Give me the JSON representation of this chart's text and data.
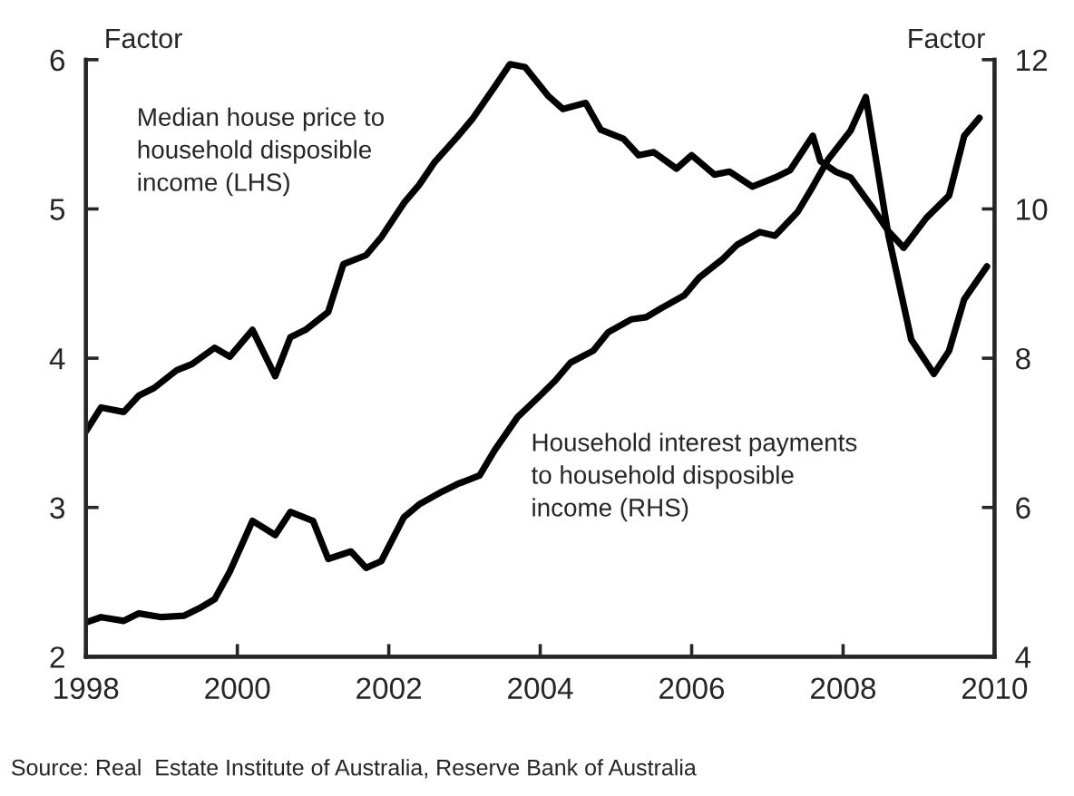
{
  "chart_data": {
    "type": "line",
    "ylabel": "Factor",
    "y2label": "Factor",
    "xlim": [
      1998,
      2010
    ],
    "xticks": [
      1998,
      2000,
      2002,
      2004,
      2006,
      2008,
      2010
    ],
    "ylim": [
      2,
      6
    ],
    "yticks": [
      2,
      3,
      4,
      5,
      6
    ],
    "y2lim": [
      4,
      12
    ],
    "y2ticks": [
      4,
      6,
      8,
      10,
      12
    ],
    "grid": false,
    "legend": false,
    "marker": "none",
    "line_style": "solid",
    "series": [
      {
        "color": "#000000",
        "x": [
          1998.0,
          1998.2,
          1998.5,
          1998.7,
          1998.9,
          1999.2,
          1999.4,
          1999.7,
          1999.9,
          2000.2,
          2000.5,
          2000.7,
          2000.9,
          2001.2,
          2001.4,
          2001.7,
          2001.9,
          2002.2,
          2002.4,
          2002.6,
          2002.9,
          2003.1,
          2003.4,
          2003.6,
          2003.8,
          2004.1,
          2004.3,
          2004.6,
          2004.8,
          2005.1,
          2005.3,
          2005.5,
          2005.8,
          2006.0,
          2006.3,
          2006.5,
          2006.8,
          2007.1,
          2007.3,
          2007.6,
          2007.7,
          2007.9,
          2008.1,
          2008.4,
          2008.6,
          2008.8,
          2009.1,
          2009.4,
          2009.6,
          2009.8
        ],
        "values": [
          3.51,
          3.67,
          3.64,
          3.75,
          3.8,
          3.92,
          3.96,
          4.07,
          4.01,
          4.19,
          3.88,
          4.14,
          4.19,
          4.31,
          4.63,
          4.69,
          4.81,
          5.04,
          5.16,
          5.31,
          5.48,
          5.6,
          5.82,
          5.97,
          5.95,
          5.76,
          5.67,
          5.71,
          5.53,
          5.47,
          5.36,
          5.38,
          5.27,
          5.36,
          5.23,
          5.25,
          5.15,
          5.21,
          5.26,
          5.49,
          5.32,
          5.25,
          5.21,
          5.0,
          4.85,
          4.74,
          4.94,
          5.09,
          5.49,
          5.61
        ]
      },
      {
        "color": "#000000",
        "axis": "y2",
        "x": [
          1998.0,
          1998.2,
          1998.5,
          1998.7,
          1999.0,
          1999.3,
          1999.5,
          1999.7,
          1999.9,
          2000.2,
          2000.5,
          2000.7,
          2001.0,
          2001.2,
          2001.5,
          2001.7,
          2001.9,
          2002.2,
          2002.4,
          2002.7,
          2002.9,
          2003.2,
          2003.4,
          2003.7,
          2004.0,
          2004.2,
          2004.4,
          2004.7,
          2004.9,
          2005.2,
          2005.4,
          2005.6,
          2005.9,
          2006.1,
          2006.4,
          2006.6,
          2006.9,
          2007.1,
          2007.4,
          2007.6,
          2007.8,
          2008.1,
          2008.3,
          2008.6,
          2008.9,
          2009.2,
          2009.4,
          2009.6,
          2009.9
        ],
        "values": [
          4.46,
          4.53,
          4.48,
          4.58,
          4.53,
          4.55,
          4.65,
          4.77,
          5.14,
          5.82,
          5.63,
          5.94,
          5.82,
          5.31,
          5.41,
          5.19,
          5.28,
          5.87,
          6.04,
          6.21,
          6.31,
          6.43,
          6.77,
          7.21,
          7.5,
          7.7,
          7.94,
          8.1,
          8.35,
          8.52,
          8.55,
          8.67,
          8.84,
          9.08,
          9.32,
          9.52,
          9.69,
          9.64,
          9.96,
          10.3,
          10.66,
          11.05,
          11.5,
          9.64,
          8.25,
          7.79,
          8.1,
          8.79,
          9.23
        ]
      }
    ],
    "annotations": [
      "Median house price to\nhousehold disposible\nincome (LHS)",
      "Household interest payments\nto household disposible\nincome (RHS)",
      "Source: Real  Estate Institute of Australia, Reserve Bank of Australia"
    ]
  }
}
